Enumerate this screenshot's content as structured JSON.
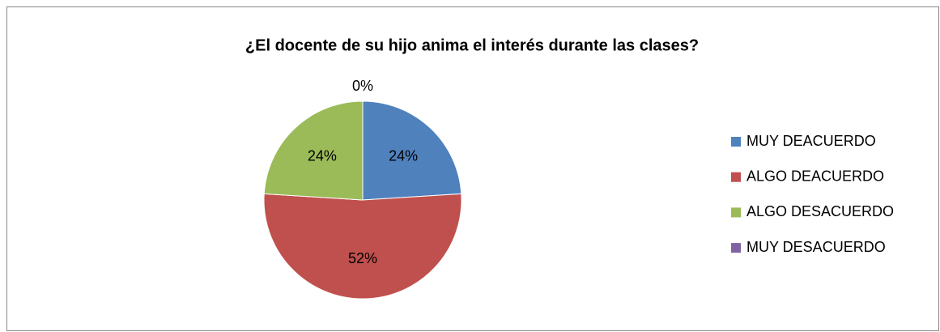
{
  "chart_data": {
    "type": "pie",
    "title": "¿El docente de su hijo anima el interés durante las clases?",
    "categories": [
      "MUY DEACUERDO",
      "ALGO DEACUERDO",
      "ALGO DESACUERDO",
      "MUY DESACUERDO"
    ],
    "values": [
      24,
      52,
      24,
      0
    ],
    "value_labels": [
      "24%",
      "52%",
      "24%",
      "0%"
    ],
    "colors": [
      "#4f81bd",
      "#c0504d",
      "#9bbb59",
      "#8064a2"
    ],
    "legend": "right"
  }
}
